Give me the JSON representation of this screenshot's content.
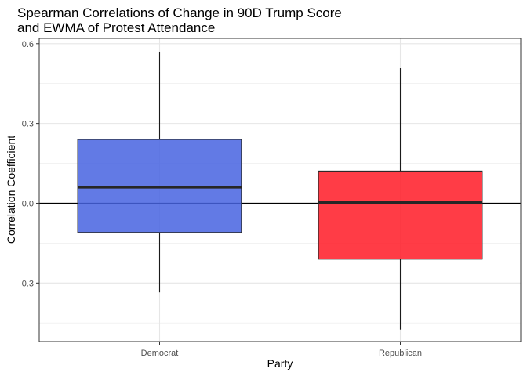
{
  "chart_data": {
    "type": "box",
    "title": [
      "Spearman Correlations of Change in 90D Trump Score",
      "and EWMA of Protest Attendance"
    ],
    "xlabel": "Party",
    "ylabel": "Correlation Coefficient",
    "categories": [
      "Democrat",
      "Republican"
    ],
    "boxes": [
      {
        "category": "Democrat",
        "min": -0.335,
        "q1": -0.11,
        "median": 0.06,
        "q3": 0.24,
        "max": 0.57,
        "color": "#4763e0"
      },
      {
        "category": "Republican",
        "min": -0.475,
        "q1": -0.21,
        "median": 0.003,
        "q3": 0.121,
        "max": 0.508,
        "color": "#ff1a26"
      }
    ],
    "ylim": [
      -0.52,
      0.62
    ],
    "yticks": [
      -0.3,
      0.0,
      0.3,
      0.6
    ],
    "ytick_labels": [
      "-0.3",
      "0.0",
      "0.3",
      "0.6"
    ],
    "hline": 0,
    "grid": true,
    "legend": "none"
  }
}
